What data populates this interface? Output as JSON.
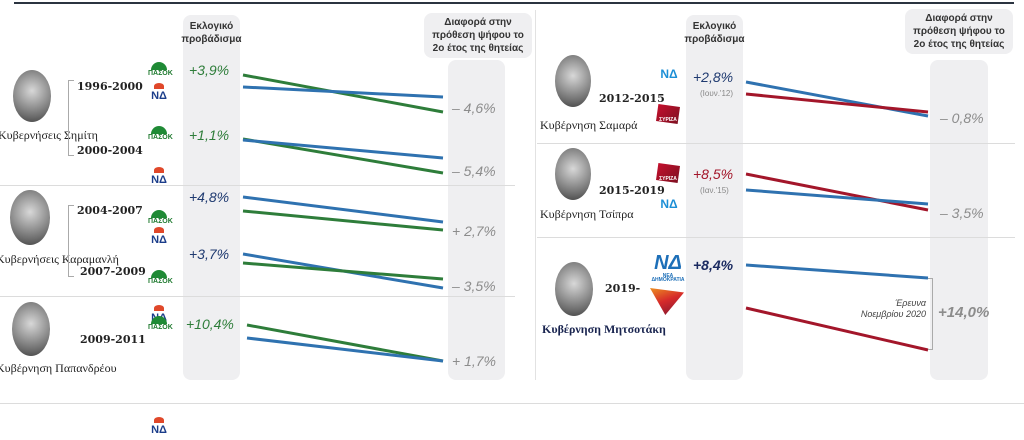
{
  "headers": {
    "lead": "Εκλογικό προβάδισμα",
    "diff": "Διαφορά στην πρόθεση ψήφου το 2ο έτος της θητείας"
  },
  "colors": {
    "PASOK": "#2e7d3a",
    "ND": "#2f72b0",
    "SYRIZA": "#a3162a",
    "diff_label": "#8c8c8c"
  },
  "governments": [
    {
      "name": "Κυβερνήσεις Σημίτη",
      "avatar": "portrait-simitis"
    },
    {
      "name": "Κυβερνήσεις Καραμανλή",
      "avatar": "portrait-karamanlis"
    },
    {
      "name": "Κυβέρνηση Παπανδρέου",
      "avatar": "portrait-papandreou"
    },
    {
      "name": "Κυβέρνηση Σαμαρά",
      "avatar": "portrait-samaras"
    },
    {
      "name": "Κυβέρνηση Τσίπρα",
      "avatar": "portrait-tsipras"
    },
    {
      "name": "Κυβέρνηση Μητσοτάκη",
      "avatar": "portrait-mitsotakis"
    }
  ],
  "logos": {
    "pasok": "ΠΑΣΟΚ",
    "nd": "ΝΔ",
    "syriza": "ΣΥΡΙΖΑ",
    "nd_full": "ΝΕΑ ΔΗΜΟΚΡΑΤΙΑ"
  },
  "chart_data": {
    "type": "slope",
    "title": "",
    "columns": [
      "Εκλογικό προβάδισμα",
      "Διαφορά στην πρόθεση ψήφου το 2ο έτος της θητείας"
    ],
    "rows": [
      {
        "period": "1996-2000",
        "government": "Κυβερνήσεις Σημίτη",
        "parties": [
          "ΠΑΣΟΚ",
          "ΝΔ"
        ],
        "lead": "+3,9%",
        "diff": "– 4,6%",
        "lead_value": 3.9,
        "diff_value": -4.6
      },
      {
        "period": "2000-2004",
        "government": "Κυβερνήσεις Σημίτη",
        "parties": [
          "ΠΑΣΟΚ",
          "ΝΔ"
        ],
        "lead": "+1,1%",
        "diff": "– 5,4%",
        "lead_value": 1.1,
        "diff_value": -5.4
      },
      {
        "period": "2004-2007",
        "government": "Κυβερνήσεις Καραμανλή",
        "parties": [
          "ΝΔ",
          "ΠΑΣΟΚ"
        ],
        "lead": "+4,8%",
        "diff": "+ 2,7%",
        "lead_value": 4.8,
        "diff_value": 2.7
      },
      {
        "period": "2007-2009",
        "government": "Κυβερνήσεις Καραμανλή",
        "parties": [
          "ΝΔ",
          "ΠΑΣΟΚ"
        ],
        "lead": "+3,7%",
        "diff": "– 3,5%",
        "lead_value": 3.7,
        "diff_value": -3.5
      },
      {
        "period": "2009-2011",
        "government": "Κυβέρνηση Παπανδρέου",
        "parties": [
          "ΠΑΣΟΚ",
          "ΝΔ"
        ],
        "lead": "+10,4%",
        "diff": "+ 1,7%",
        "lead_value": 10.4,
        "diff_value": 1.7
      },
      {
        "period": "2012-2015",
        "government": "Κυβέρνηση Σαμαρά",
        "parties": [
          "ΝΔ",
          "ΣΥΡΙΖΑ"
        ],
        "lead": "+2,8%",
        "lead_note": "(Ιουν.'12)",
        "diff": "– 0,8%",
        "lead_value": 2.8,
        "diff_value": -0.8
      },
      {
        "period": "2015-2019",
        "government": "Κυβέρνηση Τσίπρα",
        "parties": [
          "ΣΥΡΙΖΑ",
          "ΝΔ"
        ],
        "lead": "+8,5%",
        "lead_note": "(Ιαν.'15)",
        "diff": "– 3,5%",
        "lead_value": 8.5,
        "diff_value": -3.5
      },
      {
        "period": "2019-",
        "government": "Κυβέρνηση Μητσοτάκη",
        "parties": [
          "ΝΔ",
          "ΣΥΡΙΖΑ"
        ],
        "lead": "+8,4%",
        "diff": "+14,0%",
        "diff_note": "Έρευνα Νοεμβρίου 2020",
        "lead_value": 8.4,
        "diff_value": 14.0
      }
    ]
  }
}
